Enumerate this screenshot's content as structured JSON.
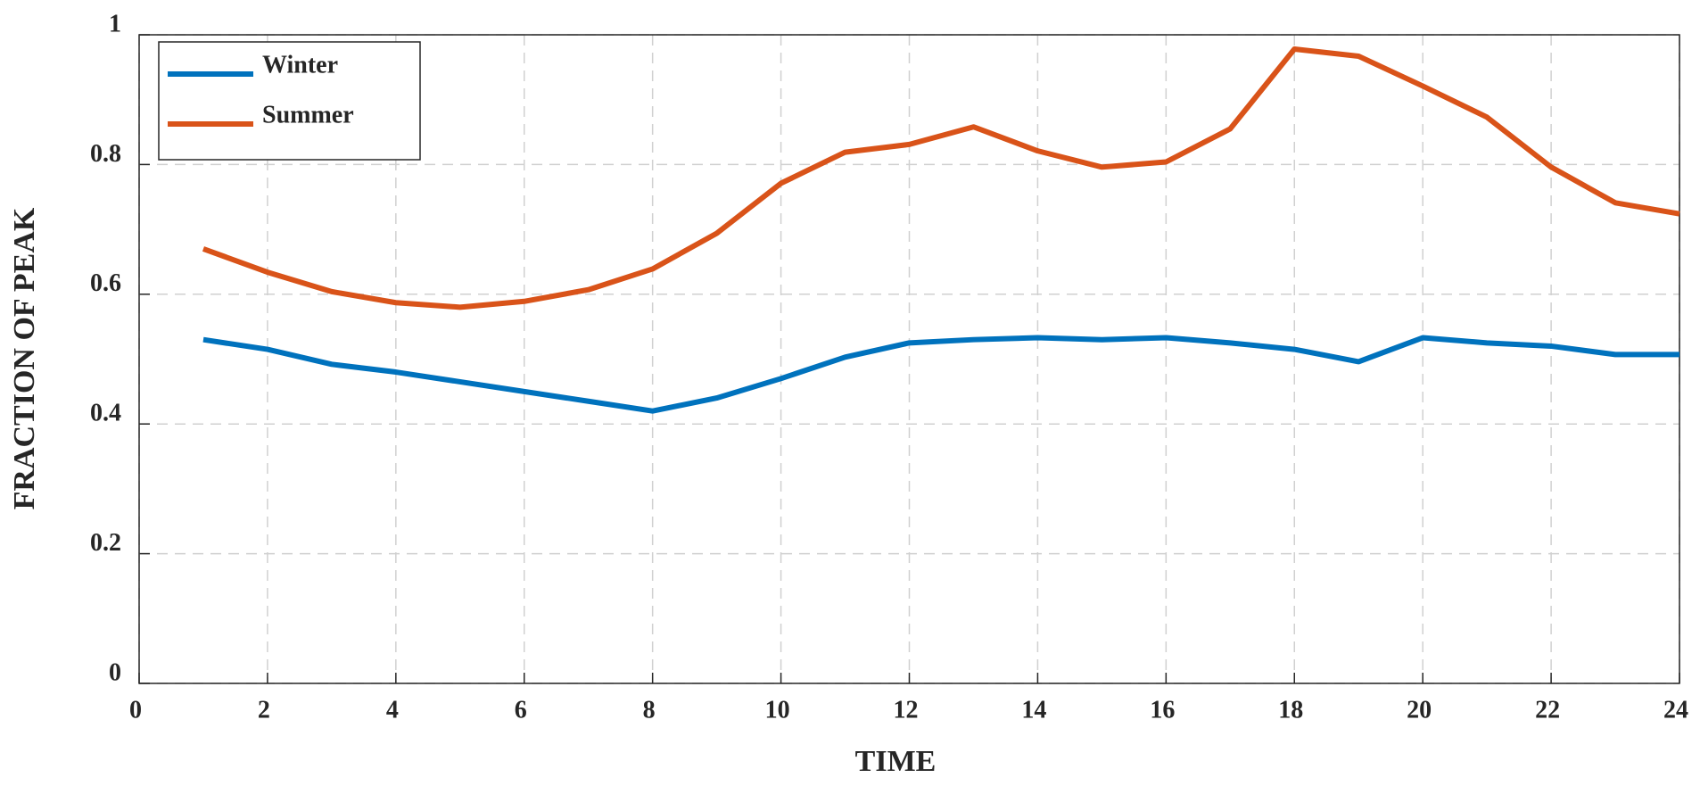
{
  "chart_data": {
    "type": "line",
    "xlabel": "TIME",
    "ylabel": "FRACTION OF PEAK",
    "x": [
      1,
      2,
      3,
      4,
      5,
      6,
      7,
      8,
      9,
      10,
      11,
      12,
      13,
      14,
      15,
      16,
      17,
      18,
      19,
      20,
      21,
      22,
      23,
      24
    ],
    "series": [
      {
        "name": "Winter",
        "color": "#0072bd",
        "values": [
          0.53,
          0.515,
          0.492,
          0.48,
          0.465,
          0.45,
          0.435,
          0.42,
          0.44,
          0.47,
          0.503,
          0.525,
          0.53,
          0.533,
          0.53,
          0.533,
          0.525,
          0.515,
          0.496,
          0.533,
          0.525,
          0.52,
          0.507,
          0.507
        ]
      },
      {
        "name": "Summer",
        "color": "#d95319",
        "values": [
          0.67,
          0.634,
          0.604,
          0.587,
          0.58,
          0.589,
          0.607,
          0.639,
          0.694,
          0.771,
          0.819,
          0.831,
          0.858,
          0.821,
          0.796,
          0.804,
          0.855,
          0.978,
          0.967,
          0.921,
          0.873,
          0.796,
          0.741,
          0.724
        ]
      }
    ],
    "xlim": [
      0,
      24
    ],
    "xticks": [
      0,
      2,
      4,
      6,
      8,
      10,
      12,
      14,
      16,
      18,
      20,
      22,
      24
    ],
    "ylim": [
      0,
      1
    ],
    "yticks": [
      0,
      0.2,
      0.4,
      0.6,
      0.8,
      1
    ],
    "grid": true,
    "legend": "upper-left"
  }
}
